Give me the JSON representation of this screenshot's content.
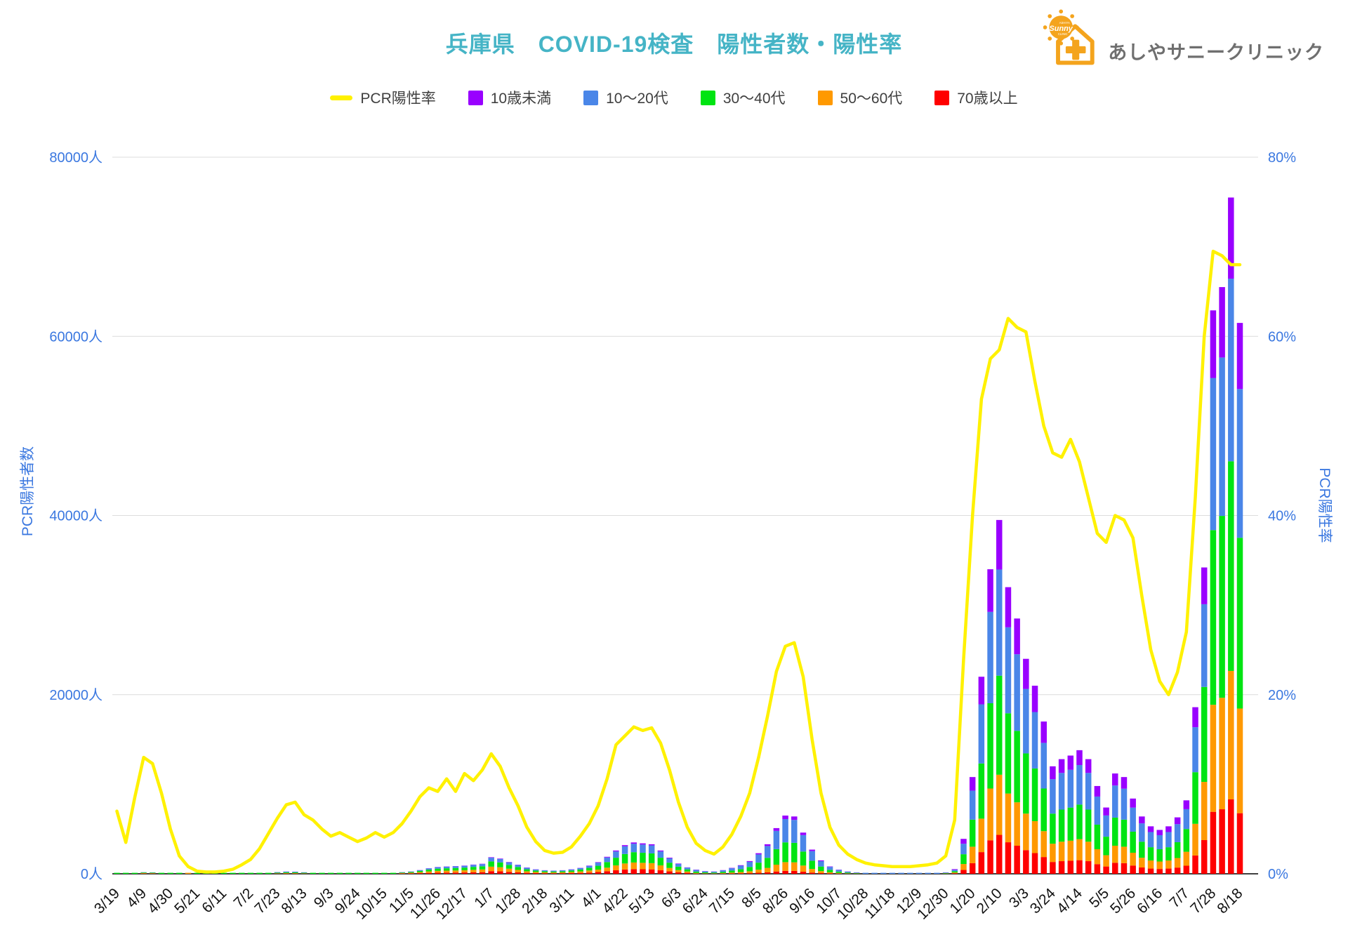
{
  "title": "兵庫県　COVID-19検査　陽性者数・陽性率",
  "logo": {
    "brand": "あしやサニークリニック",
    "sun_script": "Sunny",
    "sun_top": "ASHIYA",
    "sun_bottom": "CLINIC"
  },
  "legend": [
    {
      "label": "PCR陽性率",
      "color": "#FFF100",
      "marker": "line"
    },
    {
      "label": "10歳未満",
      "color": "#9900FF",
      "marker": "box"
    },
    {
      "label": "10〜20代",
      "color": "#4A86E8",
      "marker": "box"
    },
    {
      "label": "30〜40代",
      "color": "#00E412",
      "marker": "box"
    },
    {
      "label": "50〜60代",
      "color": "#FF9900",
      "marker": "box"
    },
    {
      "label": "70歳以上",
      "color": "#FF0000",
      "marker": "box"
    }
  ],
  "axes": {
    "left": {
      "title": "PCR陽性者数",
      "ticks": [
        "0人",
        "20000人",
        "40000人",
        "60000人",
        "80000人"
      ],
      "max": 80000
    },
    "right": {
      "title": "PCR陽性率",
      "ticks": [
        "0%",
        "20%",
        "40%",
        "60%",
        "80%"
      ],
      "max": 80
    }
  },
  "colors": {
    "grid": "#DCDCDC",
    "baseline": "#404040",
    "axis_text": "#3B78E0",
    "title": "#45B4C6",
    "logo_orange": "#F4A41D",
    "logo_gray": "#6F6F6F"
  },
  "chart_data": {
    "type": "combo",
    "title": "兵庫県　COVID-19検査　陽性者数・陽性率",
    "ylim_left": [
      0,
      80000
    ],
    "ylim_right": [
      0,
      80
    ],
    "grid": true,
    "legend_position": "top",
    "label_every": 3,
    "x": [
      "3/19",
      "3/26",
      "4/2",
      "4/9",
      "4/16",
      "4/23",
      "4/30",
      "5/7",
      "5/14",
      "5/21",
      "5/28",
      "6/4",
      "6/11",
      "6/18",
      "6/25",
      "7/2",
      "7/9",
      "7/16",
      "7/23",
      "7/30",
      "8/6",
      "8/13",
      "8/20",
      "8/27",
      "9/3",
      "9/10",
      "9/17",
      "9/24",
      "10/1",
      "10/8",
      "10/15",
      "10/22",
      "10/29",
      "11/5",
      "11/12",
      "11/19",
      "11/26",
      "12/3",
      "12/10",
      "12/17",
      "12/24",
      "12/31",
      "1/7",
      "1/14",
      "1/21",
      "1/28",
      "2/4",
      "2/11",
      "2/18",
      "2/25",
      "3/4",
      "3/11",
      "3/18",
      "3/25",
      "4/1",
      "4/8",
      "4/15",
      "4/22",
      "4/29",
      "5/6",
      "5/13",
      "5/20",
      "5/27",
      "6/3",
      "6/10",
      "6/17",
      "6/24",
      "7/1",
      "7/8",
      "7/15",
      "7/22",
      "7/29",
      "8/5",
      "8/12",
      "8/19",
      "8/26",
      "9/2",
      "9/9",
      "9/16",
      "9/23",
      "9/30",
      "10/7",
      "10/14",
      "10/21",
      "10/28",
      "11/4",
      "11/11",
      "11/18",
      "11/25",
      "12/2",
      "12/9",
      "12/16",
      "12/23",
      "12/30",
      "1/6",
      "1/13",
      "1/20",
      "1/27",
      "2/3",
      "2/10",
      "2/17",
      "2/24",
      "3/3",
      "3/10",
      "3/17",
      "3/24",
      "3/31",
      "4/7",
      "4/14",
      "4/21",
      "4/28",
      "5/5",
      "5/12",
      "5/19",
      "5/26",
      "6/2",
      "6/9",
      "6/16",
      "6/23",
      "6/30",
      "7/7",
      "7/14",
      "7/21",
      "7/28",
      "8/4",
      "8/11",
      "8/18"
    ],
    "series": [
      {
        "name": "70歳以上",
        "type": "bar",
        "stack": true,
        "color": "#FF0000",
        "values": [
          4,
          9,
          18,
          27,
          24,
          17,
          9,
          3,
          2,
          1,
          1,
          1,
          1,
          2,
          2,
          3,
          6,
          11,
          19,
          26,
          24,
          17,
          15,
          12,
          9,
          8,
          8,
          7,
          10,
          12,
          13,
          20,
          29,
          42,
          68,
          99,
          122,
          132,
          138,
          148,
          164,
          180,
          295,
          272,
          212,
          162,
          105,
          75,
          60,
          55,
          60,
          75,
          100,
          138,
          195,
          285,
          390,
          480,
          525,
          510,
          495,
          390,
          270,
          172,
          108,
          23,
          15,
          13,
          20,
          33,
          48,
          71,
          115,
          165,
          255,
          325,
          320,
          230,
          135,
          75,
          41,
          23,
          13,
          11,
          7,
          6,
          4,
          4,
          3,
          4,
          4,
          4,
          6,
          11,
          57,
          429,
          1188,
          2420,
          3740,
          4345,
          3520,
          3135,
          2640,
          2310,
          1870,
          1320,
          1408,
          1452,
          1518,
          1408,
          1078,
          814,
          1232,
          1188,
          924,
          704,
          583,
          539,
          583,
          693,
          902,
          2046,
          3762,
          6919,
          7205,
          8305,
          6765
        ]
      },
      {
        "name": "50〜60代",
        "type": "bar",
        "stack": true,
        "color": "#FF9900",
        "values": [
          9,
          18,
          36,
          54,
          48,
          33,
          18,
          8,
          3,
          1,
          1,
          1,
          1,
          2,
          3,
          7,
          13,
          24,
          42,
          57,
          53,
          37,
          33,
          26,
          20,
          19,
          16,
          14,
          18,
          20,
          23,
          34,
          50,
          70,
          113,
          168,
          205,
          221,
          232,
          248,
          278,
          302,
          500,
          459,
          356,
          273,
          175,
          125,
          100,
          90,
          100,
          125,
          165,
          230,
          273,
          399,
          546,
          672,
          735,
          714,
          693,
          546,
          378,
          242,
          151,
          69,
          47,
          39,
          62,
          99,
          144,
          213,
          345,
          495,
          765,
          975,
          960,
          690,
          405,
          225,
          123,
          69,
          39,
          24,
          16,
          13,
          10,
          8,
          8,
          8,
          8,
          10,
          13,
          24,
          88,
          663,
          1836,
          3740,
          5780,
          6715,
          5440,
          4845,
          4080,
          3570,
          2890,
          2040,
          2176,
          2244,
          2346,
          2176,
          1666,
          1258,
          1904,
          1836,
          1428,
          1088,
          901,
          833,
          901,
          1071,
          1558,
          3534,
          6498,
          11951,
          12445,
          14345,
          11685
        ]
      },
      {
        "name": "30〜40代",
        "type": "bar",
        "stack": true,
        "color": "#00E412",
        "values": [
          11,
          21,
          42,
          63,
          56,
          38,
          21,
          9,
          3,
          2,
          2,
          2,
          2,
          3,
          5,
          10,
          21,
          39,
          66,
          91,
          84,
          60,
          52,
          42,
          31,
          30,
          26,
          23,
          21,
          24,
          27,
          40,
          59,
          83,
          134,
          198,
          243,
          262,
          275,
          294,
          330,
          358,
          592,
          544,
          422,
          323,
          224,
          160,
          128,
          115,
          128,
          160,
          211,
          294,
          429,
          627,
          858,
          1056,
          1155,
          1122,
          1089,
          858,
          594,
          380,
          238,
          156,
          105,
          88,
          139,
          224,
          326,
          483,
          782,
          1122,
          1734,
          2210,
          2176,
          1564,
          918,
          510,
          279,
          156,
          88,
          48,
          32,
          25,
          20,
          17,
          15,
          17,
          17,
          20,
          25,
          48,
          146,
          1092,
          3024,
          6160,
          9520,
          11060,
          8960,
          7980,
          6720,
          5880,
          4760,
          3360,
          3584,
          3696,
          3864,
          3584,
          2744,
          2072,
          3136,
          3024,
          2352,
          1792,
          1484,
          1372,
          1484,
          1764,
          2542,
          5766,
          10602,
          19499,
          20305,
          23405,
          19065
        ]
      },
      {
        "name": "10〜20代",
        "type": "bar",
        "stack": true,
        "color": "#4A86E8",
        "values": [
          5,
          11,
          22,
          32,
          29,
          20,
          11,
          4,
          2,
          1,
          1,
          1,
          1,
          1,
          5,
          9,
          18,
          33,
          57,
          78,
          72,
          51,
          45,
          36,
          27,
          25,
          23,
          19,
          14,
          17,
          19,
          27,
          41,
          57,
          92,
          136,
          167,
          180,
          189,
          202,
          227,
          246,
          407,
          374,
          290,
          222,
          168,
          120,
          96,
          86,
          96,
          120,
          158,
          221,
          351,
          513,
          702,
          864,
          945,
          918,
          891,
          702,
          486,
          310,
          194,
          184,
          124,
          104,
          164,
          264,
          384,
          568,
          920,
          1320,
          2040,
          2600,
          2560,
          1840,
          1080,
          600,
          328,
          184,
          104,
          64,
          42,
          34,
          26,
          22,
          20,
          22,
          22,
          26,
          34,
          64,
          156,
          1170,
          3240,
          6600,
          10200,
          11850,
          9600,
          8550,
          7200,
          6300,
          5100,
          3840,
          4096,
          4224,
          4416,
          4096,
          3136,
          2368,
          3584,
          3456,
          2688,
          2048,
          1696,
          1568,
          1696,
          2016,
          2214,
          5022,
          9234,
          16983,
          17685,
          20385,
          16605
        ]
      },
      {
        "name": "10歳未満",
        "type": "bar",
        "stack": true,
        "color": "#9900FF",
        "values": [
          1,
          1,
          2,
          4,
          3,
          2,
          1,
          1,
          0,
          0,
          0,
          0,
          0,
          0,
          0,
          1,
          2,
          3,
          6,
          8,
          7,
          5,
          5,
          4,
          3,
          3,
          2,
          2,
          2,
          2,
          3,
          4,
          6,
          8,
          13,
          19,
          23,
          25,
          26,
          28,
          31,
          34,
          56,
          51,
          40,
          30,
          28,
          20,
          16,
          14,
          16,
          20,
          26,
          37,
          52,
          76,
          104,
          128,
          140,
          136,
          132,
          104,
          72,
          46,
          29,
          28,
          19,
          16,
          25,
          40,
          58,
          85,
          138,
          198,
          306,
          390,
          384,
          276,
          162,
          90,
          49,
          28,
          16,
          13,
          8,
          7,
          5,
          4,
          4,
          4,
          4,
          5,
          7,
          13,
          73,
          546,
          1512,
          3080,
          4760,
          5530,
          4480,
          3990,
          3360,
          2940,
          2380,
          1440,
          1536,
          1584,
          1656,
          1536,
          1176,
          888,
          1344,
          1296,
          1008,
          768,
          636,
          588,
          636,
          756,
          984,
          2232,
          4104,
          7548,
          7860,
          9060,
          7380
        ]
      },
      {
        "name": "PCR陽性率",
        "type": "line",
        "axis": "right",
        "color": "#FFF100",
        "values": [
          7,
          3.5,
          8.5,
          13,
          12.3,
          9,
          5,
          2,
          0.8,
          0.3,
          0.2,
          0.2,
          0.3,
          0.5,
          1,
          1.6,
          2.8,
          4.5,
          6.2,
          7.7,
          8,
          6.6,
          6,
          5,
          4.2,
          4.6,
          4.1,
          3.6,
          4,
          4.6,
          4.1,
          4.6,
          5.6,
          7,
          8.6,
          9.6,
          9.2,
          10.6,
          9.2,
          11.2,
          10.4,
          11.6,
          13.4,
          12,
          9.6,
          7.6,
          5.2,
          3.6,
          2.6,
          2.3,
          2.4,
          3,
          4.2,
          5.6,
          7.6,
          10.6,
          14.4,
          15.4,
          16.4,
          16,
          16.3,
          14.6,
          11.6,
          8,
          5.2,
          3.4,
          2.6,
          2.2,
          3,
          4.4,
          6.4,
          9,
          13,
          17.6,
          22.6,
          25.4,
          25.8,
          22,
          15,
          9,
          5.2,
          3.2,
          2.2,
          1.6,
          1.2,
          1,
          0.9,
          0.8,
          0.8,
          0.8,
          0.9,
          1,
          1.2,
          2,
          6,
          24,
          40,
          53,
          57.5,
          58.5,
          62,
          61,
          60.5,
          55,
          50,
          47,
          46.5,
          48.5,
          46,
          42,
          38,
          37,
          40,
          39.5,
          37.5,
          31,
          25,
          21.5,
          20,
          22.5,
          27,
          42,
          60,
          69.5,
          69,
          68,
          68
        ]
      }
    ]
  }
}
